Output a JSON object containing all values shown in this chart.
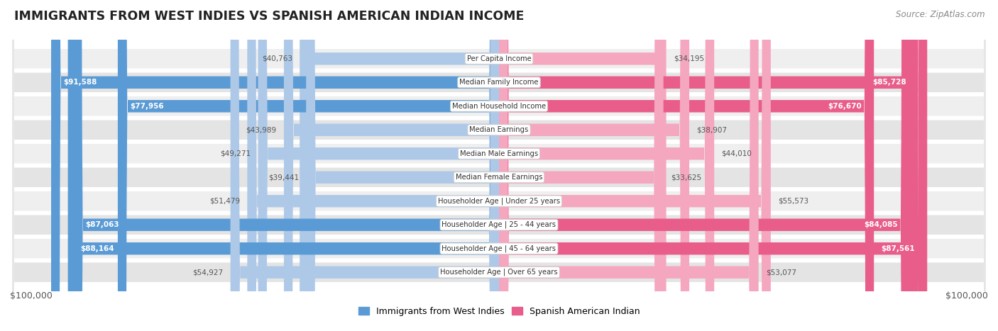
{
  "title": "IMMIGRANTS FROM WEST INDIES VS SPANISH AMERICAN INDIAN INCOME",
  "source": "Source: ZipAtlas.com",
  "categories": [
    "Per Capita Income",
    "Median Family Income",
    "Median Household Income",
    "Median Earnings",
    "Median Male Earnings",
    "Median Female Earnings",
    "Householder Age | Under 25 years",
    "Householder Age | 25 - 44 years",
    "Householder Age | 45 - 64 years",
    "Householder Age | Over 65 years"
  ],
  "west_indies": [
    40763,
    91588,
    77956,
    43989,
    49271,
    39441,
    51479,
    87063,
    88164,
    54927
  ],
  "spanish_american": [
    34195,
    85728,
    76670,
    38907,
    44010,
    33625,
    55573,
    84085,
    87561,
    53077
  ],
  "west_indies_labels": [
    "$40,763",
    "$91,588",
    "$77,956",
    "$43,989",
    "$49,271",
    "$39,441",
    "$51,479",
    "$87,063",
    "$88,164",
    "$54,927"
  ],
  "spanish_american_labels": [
    "$34,195",
    "$85,728",
    "$76,670",
    "$38,907",
    "$44,010",
    "$33,625",
    "$55,573",
    "$84,085",
    "$87,561",
    "$53,077"
  ],
  "max_value": 100000,
  "color_west_indies_full": "#5b9bd5",
  "color_west_indies_light": "#aec9e8",
  "color_spanish_full": "#e85d8a",
  "color_spanish_light": "#f4a7bf",
  "background_color": "#ffffff",
  "row_bg": "#ebebeb",
  "legend_label_wi": "Immigrants from West Indies",
  "legend_label_sa": "Spanish American Indian",
  "xlabel_left": "$100,000",
  "xlabel_right": "$100,000",
  "threshold_full": 60000,
  "label_inside_color": "#ffffff",
  "label_outside_color": "#555555"
}
